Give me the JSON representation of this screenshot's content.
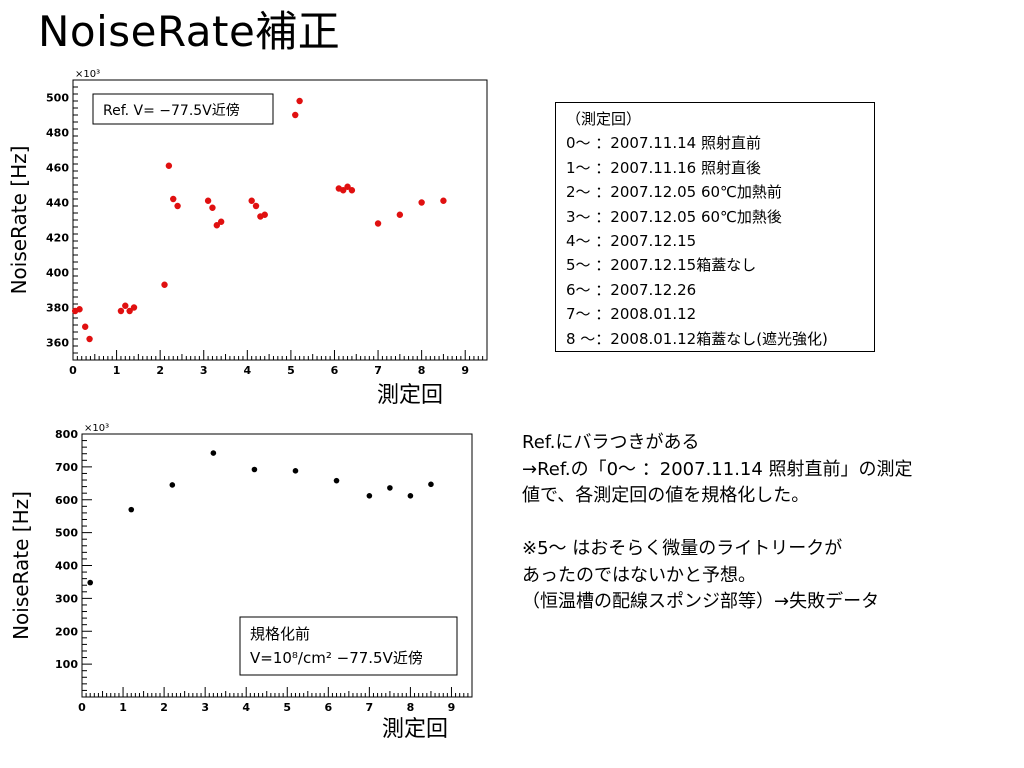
{
  "page": {
    "title": "NoiseRate補正"
  },
  "note_box": {
    "lines": [
      "（測定回）",
      "0～ ：2007.11.14 照射直前",
      "1～ ：2007.11.16 照射直後",
      "2～ ：2007.12.05 60℃加熱前",
      "3～ ：2007.12.05 60℃加熱後",
      "4～ ：2007.12.15",
      "5～ ：2007.12.15箱蓋なし",
      "6～ ：2007.12.26",
      "7～ ：2008.01.12",
      "8 ～：2008.01.12箱蓋なし(遮光強化)"
    ]
  },
  "right_text": {
    "lines": [
      "Ref.にバラつきがある",
      "→Ref.の「0～ ：2007.11.14 照射直前」の測定",
      "値で、各測定回の値を規格化した。",
      "",
      "※5～ はおそらく微量のライトリークが",
      "あったのではないかと予想。",
      "（恒温槽の配線スポンジ部等）→失敗データ"
    ]
  },
  "chart_data": [
    {
      "type": "scatter",
      "xlabel": "測定回",
      "ylabel": "NoiseRate [Hz]",
      "y_multiplier": "×10³",
      "xlim": [
        0,
        9.5
      ],
      "ylim": [
        350,
        510
      ],
      "xticks": [
        0,
        1,
        2,
        3,
        4,
        5,
        6,
        7,
        8,
        9
      ],
      "yticks": [
        360,
        380,
        400,
        420,
        440,
        460,
        480,
        500
      ],
      "legend_text": "Ref. V= −77.5V近傍",
      "color": "#e01010",
      "points": [
        {
          "x": 0.05,
          "y": 378
        },
        {
          "x": 0.15,
          "y": 379
        },
        {
          "x": 0.28,
          "y": 369
        },
        {
          "x": 0.38,
          "y": 362
        },
        {
          "x": 1.1,
          "y": 378
        },
        {
          "x": 1.2,
          "y": 381
        },
        {
          "x": 1.3,
          "y": 378
        },
        {
          "x": 1.4,
          "y": 380
        },
        {
          "x": 2.1,
          "y": 393
        },
        {
          "x": 2.2,
          "y": 461
        },
        {
          "x": 2.3,
          "y": 442
        },
        {
          "x": 2.4,
          "y": 438
        },
        {
          "x": 3.1,
          "y": 441
        },
        {
          "x": 3.2,
          "y": 437
        },
        {
          "x": 3.3,
          "y": 427
        },
        {
          "x": 3.4,
          "y": 429
        },
        {
          "x": 4.1,
          "y": 441
        },
        {
          "x": 4.2,
          "y": 438
        },
        {
          "x": 4.3,
          "y": 432
        },
        {
          "x": 4.4,
          "y": 433
        },
        {
          "x": 5.1,
          "y": 490
        },
        {
          "x": 5.2,
          "y": 498
        },
        {
          "x": 6.1,
          "y": 448
        },
        {
          "x": 6.2,
          "y": 447
        },
        {
          "x": 6.3,
          "y": 449
        },
        {
          "x": 6.4,
          "y": 447
        },
        {
          "x": 7.0,
          "y": 428
        },
        {
          "x": 7.5,
          "y": 433
        },
        {
          "x": 8.0,
          "y": 440
        },
        {
          "x": 8.5,
          "y": 441
        }
      ]
    },
    {
      "type": "scatter",
      "xlabel": "測定回",
      "ylabel": "NoiseRate [Hz]",
      "y_multiplier": "×10³",
      "xlim": [
        0,
        9.5
      ],
      "ylim": [
        0,
        800
      ],
      "xticks": [
        0,
        1,
        2,
        3,
        4,
        5,
        6,
        7,
        8,
        9
      ],
      "yticks": [
        100,
        200,
        300,
        400,
        500,
        600,
        700,
        800
      ],
      "legend_lines": [
        "規格化前",
        "V=10⁸/cm²  −77.5V近傍"
      ],
      "color": "#000000",
      "points": [
        {
          "x": 0.2,
          "y": 348
        },
        {
          "x": 1.2,
          "y": 570
        },
        {
          "x": 2.2,
          "y": 645
        },
        {
          "x": 3.2,
          "y": 742
        },
        {
          "x": 4.2,
          "y": 692
        },
        {
          "x": 5.2,
          "y": 688
        },
        {
          "x": 6.2,
          "y": 658
        },
        {
          "x": 7.0,
          "y": 612
        },
        {
          "x": 7.5,
          "y": 636
        },
        {
          "x": 8.0,
          "y": 612
        },
        {
          "x": 8.5,
          "y": 647
        }
      ]
    }
  ]
}
